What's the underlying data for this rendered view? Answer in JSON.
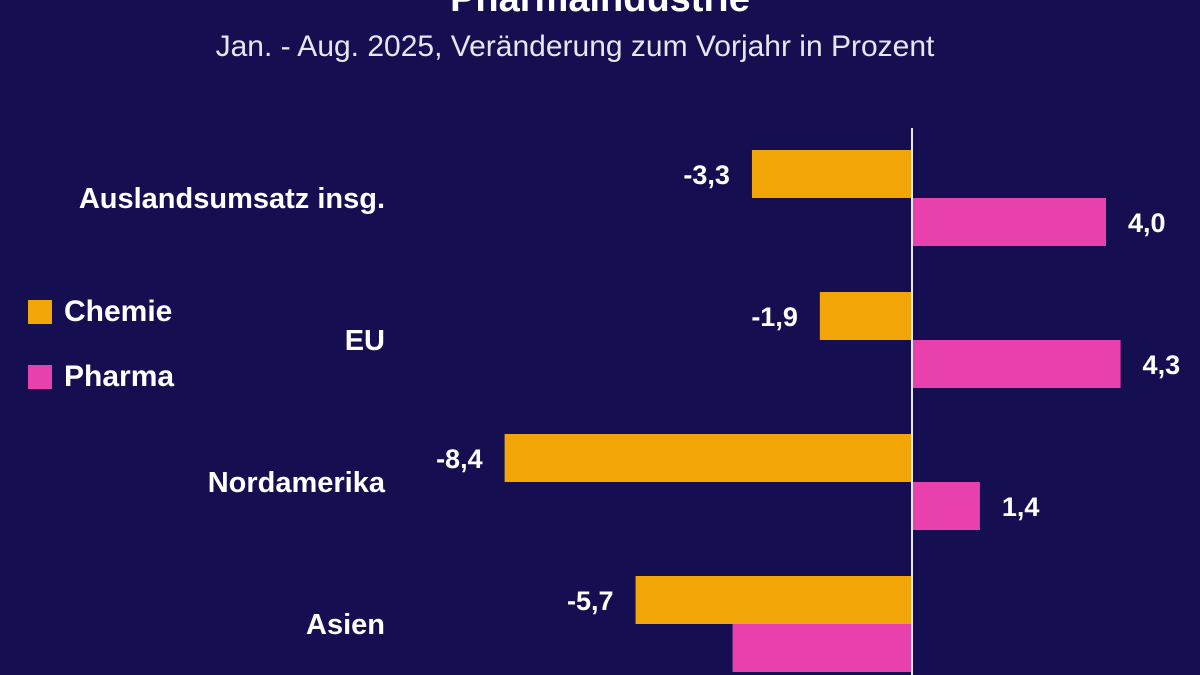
{
  "chart_data": {
    "type": "bar",
    "orientation": "horizontal",
    "title": "Pharmaindustrie",
    "subtitle": "Jan. - Aug. 2025, Veränderung zum Vorjahr in Prozent",
    "categories": [
      "Auslandsumsatz insg.",
      "EU",
      "Nordamerika",
      "Asien"
    ],
    "series": [
      {
        "name": "Chemie",
        "color": "#f2a507",
        "values": [
          -3.3,
          -1.9,
          -8.4,
          -5.7
        ],
        "labels": [
          "-3,3",
          "-1,9",
          "-8,4",
          "-5,7"
        ]
      },
      {
        "name": "Pharma",
        "color": "#e841ae",
        "values": [
          4.0,
          4.3,
          1.4,
          -3.7
        ],
        "labels": [
          "4,0",
          "4,3",
          "1,4",
          ""
        ]
      }
    ],
    "legend": {
      "placement": "left",
      "items": [
        "Chemie",
        "Pharma"
      ]
    },
    "grid": false
  }
}
